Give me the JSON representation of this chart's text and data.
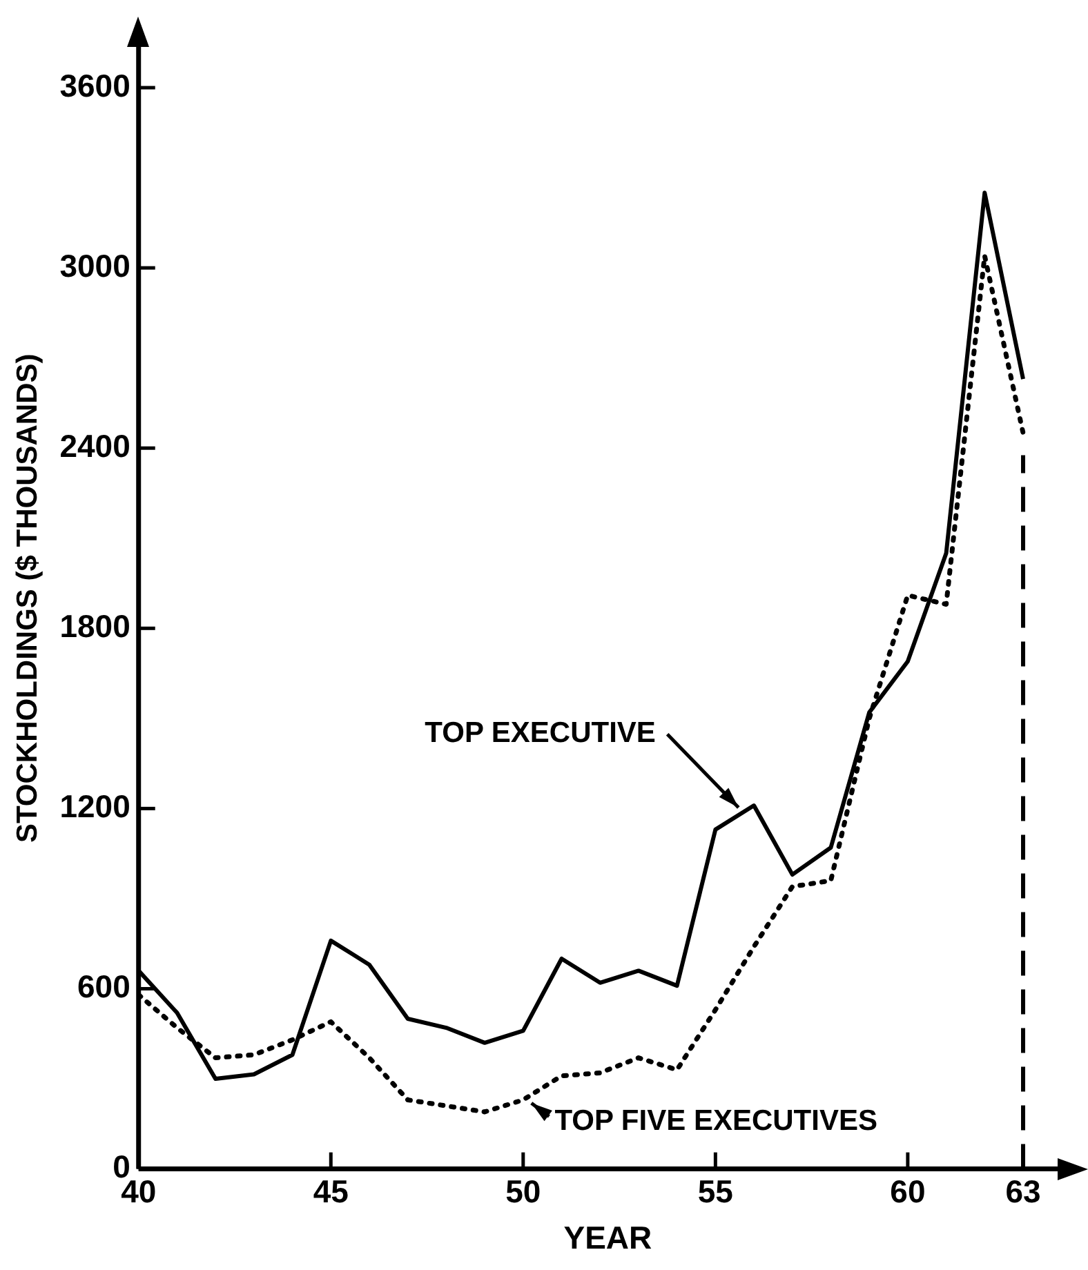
{
  "chart_data": {
    "type": "line",
    "xlabel": "YEAR",
    "ylabel": "STOCKHOLDINGS ($ THOUSANDS)",
    "x": [
      40,
      41,
      42,
      43,
      44,
      45,
      46,
      47,
      48,
      49,
      50,
      51,
      52,
      53,
      54,
      55,
      56,
      57,
      58,
      59,
      60,
      61,
      62,
      63
    ],
    "series": [
      {
        "color": "#000000",
        "line_style": "solid",
        "values": [
          660,
          520,
          300,
          315,
          380,
          760,
          680,
          500,
          470,
          420,
          460,
          700,
          620,
          660,
          610,
          1130,
          1210,
          980,
          1070,
          1520,
          1690,
          2050,
          3250,
          2630
        ]
      },
      {
        "color": "#000000",
        "line_style": "dotted",
        "values": [
          580,
          470,
          370,
          380,
          430,
          490,
          370,
          230,
          210,
          190,
          230,
          310,
          320,
          370,
          330,
          530,
          740,
          940,
          960,
          1500,
          1910,
          1880,
          3040,
          2450
        ]
      }
    ],
    "xlim": [
      40,
      64.4
    ],
    "xticks": [
      40,
      45,
      50,
      55,
      60,
      63
    ],
    "ylim": [
      0,
      3800
    ],
    "yticks": [
      0,
      600,
      1200,
      1800,
      2400,
      3000,
      3600
    ],
    "grid": false,
    "legend": false,
    "marker": "none",
    "ref_lines": [
      {
        "axis": "x",
        "value": 63,
        "color": "#000000",
        "line_style": "dashed"
      }
    ],
    "annotations": [
      {
        "text": "TOP EXECUTIVE",
        "x": 55.7,
        "y": 1190
      },
      {
        "text": "TOP FIVE EXECUTIVES",
        "x": 50.1,
        "y": 230
      }
    ]
  }
}
